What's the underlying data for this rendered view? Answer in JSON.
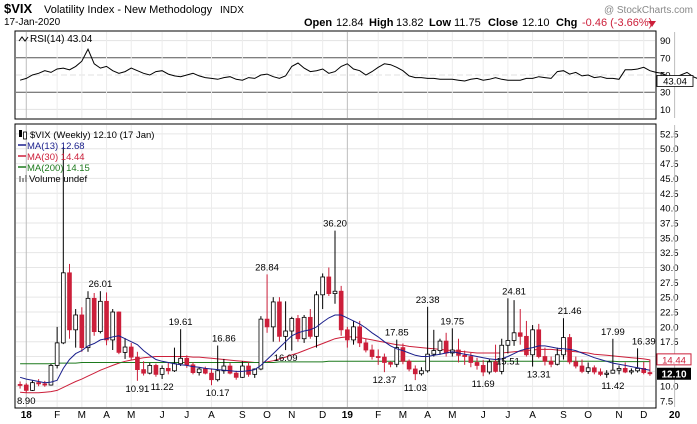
{
  "header": {
    "symbol": "$VIX",
    "name": "Volatility Index - New Methodology",
    "exchange": "INDX",
    "date": "17-Jan-2020",
    "watermark": "@ StockCharts.com",
    "open_label": "Open",
    "open": "12.84",
    "high_label": "High",
    "high": "13.82",
    "low_label": "Low",
    "low": "11.75",
    "close_label": "Close",
    "close": "12.10",
    "chg_label": "Chg",
    "chg": "-0.46 (-3.66%)"
  },
  "rsi": {
    "label": "RSI(14) 43.04",
    "current": 43.04,
    "current_label": "43.04",
    "ticks": [
      90,
      70,
      50,
      30,
      10
    ],
    "ylim": [
      0,
      100
    ],
    "line_color": "#000000",
    "values": [
      44,
      46,
      50,
      52,
      55,
      53,
      57,
      58,
      56,
      60,
      66,
      80,
      63,
      58,
      60,
      55,
      52,
      54,
      58,
      55,
      52,
      50,
      54,
      55,
      51,
      49,
      48,
      50,
      52,
      49,
      47,
      46,
      45,
      47,
      48,
      45,
      44,
      47,
      46,
      50,
      51,
      48,
      46,
      49,
      60,
      64,
      58,
      54,
      55,
      57,
      52,
      54,
      60,
      63,
      57,
      55,
      50,
      54,
      59,
      63,
      62,
      59,
      55,
      49,
      47,
      47,
      46,
      46,
      45,
      45,
      45,
      44,
      43,
      45,
      46,
      44,
      45,
      47,
      45,
      44,
      44,
      44,
      46,
      46,
      48,
      47,
      46,
      54,
      55,
      51,
      53,
      49,
      50,
      47,
      48,
      46,
      46,
      45,
      56,
      56,
      57,
      59,
      55,
      53,
      52,
      48,
      47,
      50,
      53,
      48,
      45,
      44,
      42,
      42,
      43,
      44,
      47,
      50,
      45,
      43
    ]
  },
  "price": {
    "legend_main": "$VIX (Weekly) 12.10 (17 Jan)",
    "legend_ma13": "MA(13) 12.68",
    "legend_ma30": "MA(30) 14.44",
    "legend_ma200": "MA(200) 14.15",
    "legend_volume": "Volume undef",
    "ma13_color": "#1a1f8c",
    "ma30_color": "#cc1f3a",
    "ma200_color": "#1d7a1d",
    "up_color": "#ffffff",
    "down_color": "#cc1f3a",
    "ticks": [
      "52.5",
      "50.0",
      "47.5",
      "45.0",
      "42.5",
      "40.0",
      "37.5",
      "35.0",
      "32.5",
      "30.0",
      "27.5",
      "25.0",
      "22.5",
      "20.0",
      "17.5",
      "15.0",
      "12.5",
      "10.0",
      "7.5"
    ],
    "tick_values": [
      52.5,
      50,
      47.5,
      45,
      42.5,
      40,
      37.5,
      35,
      32.5,
      30,
      27.5,
      25,
      22.5,
      20,
      17.5,
      15,
      12.5,
      10,
      7.5
    ],
    "ylim": [
      6.5,
      54
    ],
    "ma30_label": "14.44",
    "ma30_value": 14.44,
    "close_label": "12.10",
    "close_value": 12.1
  },
  "x_axis": {
    "labels": [
      {
        "text": "18",
        "idx": 1,
        "bold": true
      },
      {
        "text": "F",
        "idx": 6,
        "bold": false
      },
      {
        "text": "M",
        "idx": 10,
        "bold": false
      },
      {
        "text": "A",
        "idx": 14,
        "bold": false
      },
      {
        "text": "M",
        "idx": 18,
        "bold": false
      },
      {
        "text": "J",
        "idx": 23,
        "bold": false
      },
      {
        "text": "J",
        "idx": 27,
        "bold": false
      },
      {
        "text": "A",
        "idx": 31,
        "bold": false
      },
      {
        "text": "S",
        "idx": 36,
        "bold": false
      },
      {
        "text": "O",
        "idx": 40,
        "bold": false
      },
      {
        "text": "N",
        "idx": 44,
        "bold": false
      },
      {
        "text": "D",
        "idx": 49,
        "bold": false
      },
      {
        "text": "19",
        "idx": 53,
        "bold": true
      },
      {
        "text": "F",
        "idx": 58,
        "bold": false
      },
      {
        "text": "M",
        "idx": 62,
        "bold": false
      },
      {
        "text": "A",
        "idx": 66,
        "bold": false
      },
      {
        "text": "M",
        "idx": 70,
        "bold": false
      },
      {
        "text": "J",
        "idx": 75,
        "bold": false
      },
      {
        "text": "J",
        "idx": 79,
        "bold": false
      },
      {
        "text": "A",
        "idx": 83,
        "bold": false
      },
      {
        "text": "S",
        "idx": 88,
        "bold": false
      },
      {
        "text": "O",
        "idx": 92,
        "bold": false
      },
      {
        "text": "N",
        "idx": 97,
        "bold": false
      },
      {
        "text": "D",
        "idx": 101,
        "bold": false
      },
      {
        "text": "20",
        "idx": 106,
        "bold": true
      }
    ]
  },
  "annotations": [
    {
      "text": "8.90",
      "idx": 1,
      "value": 8.9,
      "pos": "below"
    },
    {
      "text": "26.01",
      "idx": 13,
      "value": 26.01,
      "pos": "above"
    },
    {
      "text": "10.91",
      "idx": 19,
      "value": 10.91,
      "pos": "below"
    },
    {
      "text": "11.22",
      "idx": 23,
      "value": 11.22,
      "pos": "below"
    },
    {
      "text": "19.61",
      "idx": 26,
      "value": 19.61,
      "pos": "above"
    },
    {
      "text": "16.86",
      "idx": 33,
      "value": 16.86,
      "pos": "above"
    },
    {
      "text": "10.17",
      "idx": 32,
      "value": 10.17,
      "pos": "below"
    },
    {
      "text": "28.84",
      "idx": 40,
      "value": 28.84,
      "pos": "above"
    },
    {
      "text": "16.09",
      "idx": 43,
      "value": 16.09,
      "pos": "below"
    },
    {
      "text": "36.20",
      "idx": 51,
      "value": 36.2,
      "pos": "above"
    },
    {
      "text": "17.85",
      "idx": 61,
      "value": 17.85,
      "pos": "above"
    },
    {
      "text": "12.37",
      "idx": 59,
      "value": 12.37,
      "pos": "below"
    },
    {
      "text": "11.03",
      "idx": 64,
      "value": 11.03,
      "pos": "below"
    },
    {
      "text": "23.38",
      "idx": 66,
      "value": 23.38,
      "pos": "above"
    },
    {
      "text": "19.75",
      "idx": 70,
      "value": 19.75,
      "pos": "above"
    },
    {
      "text": "11.69",
      "idx": 75,
      "value": 11.69,
      "pos": "below"
    },
    {
      "text": "15.51",
      "idx": 79,
      "value": 15.51,
      "pos": "below"
    },
    {
      "text": "24.81",
      "idx": 80,
      "value": 24.81,
      "pos": "above"
    },
    {
      "text": "13.31",
      "idx": 84,
      "value": 13.31,
      "pos": "below"
    },
    {
      "text": "21.46",
      "idx": 89,
      "value": 21.46,
      "pos": "above"
    },
    {
      "text": "11.42",
      "idx": 96,
      "value": 11.42,
      "pos": "below"
    },
    {
      "text": "17.99",
      "idx": 96,
      "value": 17.99,
      "pos": "above"
    },
    {
      "text": "16.39",
      "idx": 101,
      "value": 16.39,
      "pos": "above"
    }
  ],
  "chart_data": {
    "type": "candlestick",
    "title": "$VIX Volatility Index - New Methodology INDX",
    "period": "Weekly",
    "ylim": [
      6.5,
      54
    ],
    "candles": [
      [
        10.3,
        10.8,
        9.6,
        10.2
      ],
      [
        10.2,
        10.5,
        8.9,
        9.3
      ],
      [
        9.3,
        11.0,
        9.2,
        10.6
      ],
      [
        10.6,
        11.2,
        10.0,
        10.4
      ],
      [
        10.4,
        10.9,
        9.9,
        10.2
      ],
      [
        10.2,
        13.8,
        10.1,
        13.5
      ],
      [
        13.5,
        20.0,
        13.0,
        17.3
      ],
      [
        17.3,
        50.3,
        17.1,
        29.1
      ],
      [
        29.1,
        30.6,
        18.0,
        19.5
      ],
      [
        19.5,
        23.0,
        16.5,
        22.0
      ],
      [
        22.0,
        23.3,
        15.8,
        16.5
      ],
      [
        16.5,
        26.0,
        15.8,
        24.8
      ],
      [
        24.8,
        25.7,
        18.5,
        19.2
      ],
      [
        19.2,
        26.01,
        18.9,
        24.3
      ],
      [
        24.3,
        25.8,
        16.9,
        17.8
      ],
      [
        17.8,
        23.0,
        16.1,
        22.5
      ],
      [
        22.5,
        22.6,
        15.4,
        15.7
      ],
      [
        15.7,
        18.1,
        14.6,
        16.6
      ],
      [
        16.6,
        17.3,
        14.4,
        14.9
      ],
      [
        14.9,
        15.8,
        10.91,
        12.8
      ],
      [
        12.8,
        14.2,
        11.8,
        12.2
      ],
      [
        12.2,
        13.9,
        12.0,
        13.5
      ],
      [
        13.5,
        13.8,
        11.6,
        12.0
      ],
      [
        12.0,
        13.5,
        11.22,
        13.0
      ],
      [
        13.0,
        14.0,
        12.0,
        12.6
      ],
      [
        12.6,
        16.5,
        12.4,
        13.8
      ],
      [
        13.8,
        19.61,
        13.4,
        14.7
      ],
      [
        14.7,
        15.2,
        13.1,
        13.6
      ],
      [
        13.6,
        14.0,
        12.0,
        12.3
      ],
      [
        12.3,
        13.2,
        11.8,
        12.9
      ],
      [
        12.9,
        13.3,
        12.0,
        12.2
      ],
      [
        12.2,
        13.0,
        10.17,
        11.1
      ],
      [
        11.1,
        16.86,
        10.8,
        12.6
      ],
      [
        12.6,
        14.6,
        12.1,
        13.4
      ],
      [
        13.4,
        13.9,
        12.0,
        12.2
      ],
      [
        12.2,
        12.6,
        11.1,
        11.5
      ],
      [
        11.5,
        14.2,
        11.4,
        13.4
      ],
      [
        13.4,
        14.0,
        11.6,
        12.0
      ],
      [
        12.0,
        13.0,
        11.4,
        12.9
      ],
      [
        12.9,
        21.8,
        12.7,
        21.3
      ],
      [
        21.3,
        28.84,
        19.0,
        20.0
      ],
      [
        20.0,
        25.0,
        17.5,
        24.2
      ],
      [
        24.2,
        25.0,
        17.5,
        18.4
      ],
      [
        18.4,
        24.3,
        16.09,
        19.3
      ],
      [
        19.3,
        21.7,
        16.0,
        21.4
      ],
      [
        21.4,
        22.0,
        17.5,
        18.0
      ],
      [
        18.0,
        22.0,
        17.3,
        21.6
      ],
      [
        21.6,
        23.0,
        18.0,
        18.4
      ],
      [
        18.4,
        26.0,
        16.5,
        25.4
      ],
      [
        25.4,
        29.0,
        23.0,
        28.4
      ],
      [
        28.4,
        30.0,
        25.2,
        25.6
      ],
      [
        25.6,
        36.2,
        23.9,
        26.0
      ],
      [
        26.0,
        26.9,
        18.5,
        19.5
      ],
      [
        19.5,
        20.0,
        16.5,
        17.8
      ],
      [
        17.8,
        21.0,
        17.0,
        20.0
      ],
      [
        20.0,
        21.0,
        16.6,
        17.3
      ],
      [
        17.3,
        18.0,
        15.7,
        16.1
      ],
      [
        16.1,
        17.0,
        14.5,
        15.0
      ],
      [
        15.0,
        16.2,
        13.6,
        14.9
      ],
      [
        14.9,
        15.5,
        12.37,
        14.0
      ],
      [
        14.0,
        14.2,
        13.2,
        13.7
      ],
      [
        13.7,
        17.85,
        13.2,
        16.5
      ],
      [
        16.5,
        17.2,
        13.7,
        14.2
      ],
      [
        14.2,
        14.5,
        12.5,
        12.9
      ],
      [
        12.9,
        13.5,
        11.03,
        12.1
      ],
      [
        12.1,
        13.2,
        11.8,
        12.6
      ],
      [
        12.6,
        23.38,
        12.3,
        15.4
      ],
      [
        15.4,
        19.5,
        15.0,
        16.0
      ],
      [
        16.0,
        18.0,
        15.3,
        17.6
      ],
      [
        17.6,
        19.0,
        15.0,
        15.6
      ],
      [
        15.6,
        19.75,
        15.0,
        16.1
      ],
      [
        16.1,
        18.0,
        14.0,
        15.2
      ],
      [
        15.2,
        16.0,
        13.6,
        15.0
      ],
      [
        15.0,
        15.6,
        13.2,
        14.0
      ],
      [
        14.0,
        14.8,
        12.8,
        13.5
      ],
      [
        13.5,
        14.4,
        11.69,
        12.4
      ],
      [
        12.4,
        14.5,
        12.0,
        14.1
      ],
      [
        14.1,
        17.0,
        12.3,
        12.5
      ],
      [
        12.5,
        18.0,
        12.0,
        16.9
      ],
      [
        16.9,
        24.81,
        15.51,
        17.7
      ],
      [
        17.7,
        24.5,
        16.8,
        19.0
      ],
      [
        19.0,
        23.0,
        17.0,
        18.4
      ],
      [
        18.4,
        21.0,
        15.0,
        15.3
      ],
      [
        15.3,
        20.3,
        13.31,
        19.5
      ],
      [
        19.5,
        20.5,
        14.7,
        15.0
      ],
      [
        15.0,
        16.5,
        13.5,
        14.2
      ],
      [
        14.2,
        15.0,
        13.2,
        13.7
      ],
      [
        13.7,
        16.5,
        13.5,
        15.3
      ],
      [
        15.3,
        21.46,
        14.5,
        18.2
      ],
      [
        18.2,
        18.8,
        13.7,
        14.1
      ],
      [
        14.1,
        15.0,
        13.0,
        13.4
      ],
      [
        13.4,
        14.5,
        12.2,
        12.5
      ],
      [
        12.5,
        14.0,
        12.1,
        13.1
      ],
      [
        13.1,
        13.5,
        12.0,
        12.4
      ],
      [
        12.4,
        13.0,
        11.7,
        12.0
      ],
      [
        12.0,
        12.7,
        11.42,
        12.2
      ],
      [
        12.2,
        17.99,
        12.1,
        12.7
      ],
      [
        12.7,
        13.5,
        12.0,
        13.0
      ],
      [
        13.0,
        14.0,
        12.2,
        12.4
      ],
      [
        12.4,
        13.0,
        12.0,
        12.6
      ],
      [
        12.6,
        16.39,
        12.3,
        13.0
      ],
      [
        13.0,
        14.1,
        12.0,
        12.3
      ],
      [
        12.3,
        14.5,
        11.75,
        12.1
      ]
    ],
    "ma13": [
      11.5,
      11.2,
      11.0,
      10.8,
      10.6,
      10.7,
      11.0,
      13.0,
      14.5,
      15.5,
      16.0,
      16.8,
      17.2,
      17.8,
      18.0,
      18.3,
      18.5,
      18.0,
      17.5,
      17.0,
      16.0,
      15.2,
      14.5,
      14.2,
      14.0,
      13.8,
      13.6,
      13.5,
      13.3,
      13.2,
      13.0,
      12.9,
      12.8,
      12.7,
      12.6,
      12.5,
      12.5,
      12.6,
      12.8,
      13.5,
      14.5,
      15.5,
      16.5,
      17.5,
      18.5,
      19.0,
      19.3,
      19.5,
      20.0,
      20.8,
      21.5,
      22.0,
      22.0,
      21.5,
      21.0,
      20.5,
      19.8,
      19.0,
      18.3,
      17.5,
      16.8,
      16.3,
      16.0,
      15.6,
      15.2,
      15.0,
      15.0,
      15.2,
      15.4,
      15.6,
      15.8,
      15.6,
      15.4,
      15.2,
      15.0,
      14.8,
      14.6,
      14.5,
      14.6,
      15.0,
      15.5,
      16.0,
      16.3,
      16.5,
      16.8,
      16.8,
      16.6,
      16.4,
      16.3,
      16.2,
      16.0,
      15.6,
      15.2,
      14.8,
      14.5,
      14.2,
      13.9,
      13.7,
      13.5,
      13.3,
      13.1,
      12.9,
      12.68
    ],
    "ma30": [
      9.0,
      8.9,
      8.9,
      8.9,
      9.0,
      9.1,
      9.3,
      9.8,
      10.3,
      10.8,
      11.2,
      11.7,
      12.2,
      12.7,
      13.1,
      13.5,
      13.9,
      14.2,
      14.4,
      14.6,
      14.8,
      14.9,
      15.0,
      15.0,
      15.0,
      15.0,
      15.0,
      15.0,
      14.9,
      14.9,
      14.8,
      14.7,
      14.6,
      14.5,
      14.4,
      14.3,
      14.2,
      14.1,
      14.0,
      14.0,
      14.1,
      14.3,
      14.6,
      14.9,
      15.3,
      15.6,
      16.0,
      16.4,
      16.8,
      17.2,
      17.6,
      18.0,
      18.2,
      18.3,
      18.3,
      18.2,
      18.0,
      17.8,
      17.6,
      17.4,
      17.2,
      17.0,
      16.9,
      16.7,
      16.6,
      16.5,
      16.4,
      16.3,
      16.2,
      16.1,
      16.0,
      15.9,
      15.8,
      15.7,
      15.6,
      15.6,
      15.6,
      15.6,
      15.6,
      15.7,
      15.8,
      15.9,
      16.0,
      16.1,
      16.2,
      16.2,
      16.2,
      16.1,
      16.0,
      15.9,
      15.8,
      15.7,
      15.6,
      15.4,
      15.3,
      15.2,
      15.1,
      15.0,
      14.9,
      14.8,
      14.7,
      14.6,
      14.44
    ],
    "ma200": [
      13.8,
      13.8,
      13.8,
      13.8,
      13.8,
      13.8,
      13.9,
      13.9,
      13.9,
      13.9,
      14.0,
      14.0,
      14.0,
      14.0,
      14.0,
      14.0,
      14.0,
      14.0,
      14.0,
      14.0,
      14.0,
      14.0,
      14.0,
      14.0,
      14.0,
      14.0,
      14.0,
      14.0,
      14.0,
      14.0,
      14.0,
      14.0,
      14.0,
      14.0,
      14.0,
      14.0,
      14.0,
      14.0,
      14.0,
      14.0,
      14.0,
      14.0,
      14.1,
      14.1,
      14.1,
      14.1,
      14.1,
      14.1,
      14.1,
      14.1,
      14.2,
      14.2,
      14.2,
      14.2,
      14.2,
      14.2,
      14.2,
      14.2,
      14.2,
      14.2,
      14.2,
      14.2,
      14.2,
      14.2,
      14.2,
      14.2,
      14.2,
      14.2,
      14.2,
      14.2,
      14.2,
      14.2,
      14.2,
      14.2,
      14.2,
      14.2,
      14.2,
      14.2,
      14.2,
      14.2,
      14.2,
      14.2,
      14.2,
      14.2,
      14.2,
      14.2,
      14.2,
      14.2,
      14.2,
      14.2,
      14.2,
      14.2,
      14.2,
      14.2,
      14.2,
      14.2,
      14.2,
      14.15,
      14.15,
      14.15,
      14.15,
      14.15,
      14.15
    ]
  }
}
